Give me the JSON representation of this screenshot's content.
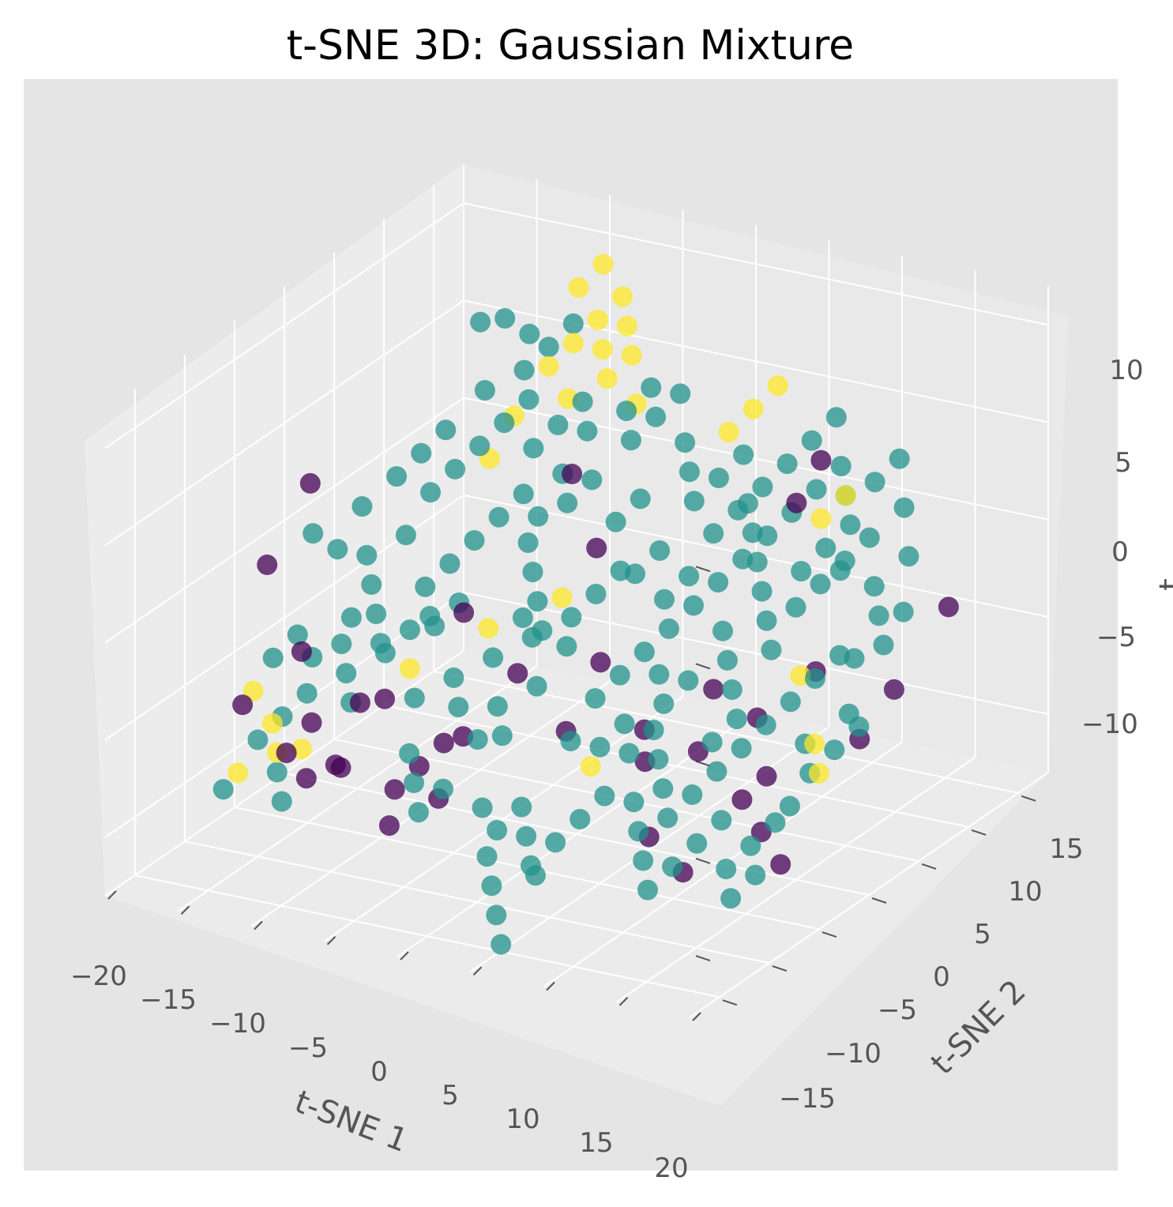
{
  "chart_data": {
    "type": "scatter",
    "projection": "3d",
    "title": "t-SNE 3D: Gaussian Mixture",
    "xlabel": "t-SNE 1",
    "ylabel": "t-SNE 2",
    "zlabel": "t",
    "xticks": [
      "−20",
      "−15",
      "−10",
      "−5",
      "0",
      "5",
      "10",
      "15",
      "20"
    ],
    "yticks": [
      "−15",
      "−10",
      "−5",
      "0",
      "5",
      "10",
      "15"
    ],
    "zticks": [
      "−10",
      "−5",
      "0",
      "5",
      "10"
    ],
    "xlim": [
      -20,
      20
    ],
    "ylim": [
      -18,
      18
    ],
    "zlim": [
      -13,
      12
    ],
    "grid": true,
    "legend": "none",
    "colormap": "viridis",
    "style": "ggplot",
    "colors": {
      "figure_background": "#ffffff",
      "axes_background": "#e5e5e5",
      "pane": "#ebebeb",
      "grid": "#ffffff",
      "class_0": "#440154",
      "class_1": "#21918c",
      "class_2": "#fde725"
    },
    "series": [
      {
        "class": 0,
        "color": "#440154",
        "points": [
          [
            -15.5,
            -4,
            4
          ],
          [
            -13,
            -12,
            3
          ],
          [
            -12,
            -10,
            -2
          ],
          [
            -14,
            -13,
            -4
          ],
          [
            -10,
            -9,
            -8
          ],
          [
            -11,
            -11,
            -8
          ],
          [
            -7,
            -8,
            -9
          ],
          [
            -6,
            -7,
            -8
          ],
          [
            -5,
            -6,
            -7
          ],
          [
            -4,
            -8,
            -9
          ],
          [
            -6,
            -10,
            -10
          ],
          [
            -3,
            -7,
            -6
          ],
          [
            -9,
            -11,
            -7
          ],
          [
            -1,
            1,
            5
          ],
          [
            0,
            2,
            1
          ],
          [
            -2,
            -3,
            -4
          ],
          [
            3,
            -2,
            -3
          ],
          [
            2,
            -4,
            -6
          ],
          [
            6,
            -2,
            -6
          ],
          [
            7,
            -3,
            -11
          ],
          [
            14,
            4,
            7
          ],
          [
            13,
            3,
            5
          ],
          [
            15,
            2,
            -3
          ],
          [
            12,
            -1,
            -9
          ],
          [
            13,
            0,
            -8
          ],
          [
            14,
            -2,
            -10
          ],
          [
            16,
            -3,
            -11
          ],
          [
            18,
            2,
            -6
          ],
          [
            19,
            4,
            -4
          ],
          [
            20,
            8,
            -1
          ],
          [
            -8,
            -10,
            -4
          ],
          [
            -5,
            -4,
            -1
          ],
          [
            4,
            1,
            -9
          ],
          [
            8,
            2,
            -5
          ],
          [
            9,
            -1,
            -7
          ],
          [
            10,
            -4,
            -12
          ],
          [
            11,
            2,
            -6
          ],
          [
            -12,
            -9,
            -6
          ],
          [
            -11,
            -13,
            -6
          ],
          [
            -7,
            -9,
            -4
          ]
        ]
      },
      {
        "class": 1,
        "color": "#21918c",
        "points": [
          [
            -10,
            5,
            10
          ],
          [
            -9,
            6,
            10
          ],
          [
            -8,
            7,
            9
          ],
          [
            -11,
            3,
            5
          ],
          [
            -12,
            2,
            4
          ],
          [
            -13,
            1,
            3
          ],
          [
            -15,
            -2,
            0
          ],
          [
            -16,
            -3,
            1
          ],
          [
            -14,
            -1,
            2
          ],
          [
            -13,
            -2,
            0
          ],
          [
            -12,
            -3,
            -1
          ],
          [
            -11,
            -4,
            -2
          ],
          [
            -10,
            -5,
            -3
          ],
          [
            -9,
            -2,
            -1
          ],
          [
            -8,
            -1,
            0
          ],
          [
            -7,
            0,
            1
          ],
          [
            -6,
            1,
            2
          ],
          [
            -5,
            2,
            3
          ],
          [
            -4,
            1,
            1
          ],
          [
            -3,
            0,
            0
          ],
          [
            -2,
            -1,
            -1
          ],
          [
            -1,
            -2,
            -2
          ],
          [
            0,
            -1,
            -3
          ],
          [
            -12,
            -6,
            -3
          ],
          [
            -13,
            -8,
            -5
          ],
          [
            -14,
            -9,
            -6
          ],
          [
            -15,
            -10,
            -7
          ],
          [
            -16,
            -12,
            -9
          ],
          [
            -11,
            -7,
            -4
          ],
          [
            -10,
            -8,
            -5
          ],
          [
            -9,
            -6,
            -3
          ],
          [
            -8,
            -5,
            -2
          ],
          [
            -7,
            -4,
            -2
          ],
          [
            -6,
            -3,
            -1
          ],
          [
            -5,
            -5,
            -4
          ],
          [
            -4,
            -6,
            -5
          ],
          [
            -3,
            -4,
            -3
          ],
          [
            -2,
            -5,
            -5
          ],
          [
            -1,
            -3,
            -2
          ],
          [
            0,
            -4,
            -4
          ],
          [
            1,
            -2,
            -1
          ],
          [
            2,
            -1,
            0
          ],
          [
            3,
            0,
            1
          ],
          [
            -8,
            2,
            5
          ],
          [
            -7,
            3,
            6
          ],
          [
            -6,
            4,
            7
          ],
          [
            -5,
            3,
            5
          ],
          [
            -4,
            4,
            6
          ],
          [
            -3,
            3,
            4
          ],
          [
            -2,
            2,
            3
          ],
          [
            -1,
            3,
            4
          ],
          [
            1,
            4,
            6
          ],
          [
            2,
            5,
            7
          ],
          [
            3,
            6,
            8
          ],
          [
            4,
            5,
            6
          ],
          [
            5,
            4,
            5
          ],
          [
            6,
            3,
            4
          ],
          [
            7,
            4,
            5
          ],
          [
            8,
            5,
            6
          ],
          [
            9,
            4,
            4
          ],
          [
            10,
            3,
            3
          ],
          [
            11,
            2,
            2
          ],
          [
            12,
            1,
            1
          ],
          [
            13,
            0,
            0
          ],
          [
            14,
            -1,
            -1
          ],
          [
            15,
            0,
            1
          ],
          [
            16,
            1,
            2
          ],
          [
            17,
            2,
            3
          ],
          [
            18,
            3,
            4
          ],
          [
            19,
            2,
            2
          ],
          [
            20,
            1,
            1
          ],
          [
            21,
            2,
            1
          ],
          [
            18,
            0,
            -1
          ],
          [
            17,
            -1,
            -2
          ],
          [
            16,
            -2,
            -3
          ],
          [
            15,
            -3,
            -4
          ],
          [
            14,
            -4,
            -5
          ],
          [
            13,
            -5,
            -6
          ],
          [
            12,
            -6,
            -7
          ],
          [
            11,
            -7,
            -8
          ],
          [
            10,
            -6,
            -7
          ],
          [
            9,
            -5,
            -6
          ],
          [
            8,
            -4,
            -5
          ],
          [
            7,
            -5,
            -6
          ],
          [
            6,
            -6,
            -8
          ],
          [
            5,
            -7,
            -9
          ],
          [
            4,
            -8,
            -10
          ],
          [
            3,
            -9,
            -11
          ],
          [
            2,
            -8,
            -10
          ],
          [
            1,
            -7,
            -9
          ],
          [
            0,
            -8,
            -10
          ],
          [
            3,
            -5,
            -6
          ],
          [
            4,
            -4,
            -4
          ],
          [
            5,
            -3,
            -3
          ],
          [
            6,
            -2,
            -2
          ],
          [
            7,
            -1,
            -1
          ],
          [
            8,
            0,
            0
          ],
          [
            9,
            1,
            1
          ],
          [
            10,
            2,
            2
          ],
          [
            11,
            3,
            3
          ],
          [
            12,
            4,
            4
          ],
          [
            13,
            5,
            5
          ],
          [
            14,
            6,
            6
          ],
          [
            15,
            5,
            5
          ],
          [
            16,
            4,
            4
          ],
          [
            17,
            5,
            6
          ],
          [
            18,
            6,
            7
          ],
          [
            19,
            5,
            5
          ],
          [
            20,
            4,
            3
          ],
          [
            12,
            -2,
            -3
          ],
          [
            11,
            -1,
            -2
          ],
          [
            10,
            0,
            -1
          ],
          [
            9,
            -2,
            -3
          ],
          [
            8,
            -3,
            -4
          ],
          [
            7,
            -2,
            -3
          ],
          [
            6,
            -4,
            -5
          ],
          [
            5,
            -5,
            -6
          ],
          [
            14,
            2,
            2
          ],
          [
            15,
            3,
            3
          ],
          [
            16,
            3,
            2
          ],
          [
            13,
            -3,
            -4
          ],
          [
            12,
            -4,
            -5
          ],
          [
            17,
            -2,
            -5
          ],
          [
            18,
            -3,
            -6
          ],
          [
            19,
            -2,
            -5
          ],
          [
            20,
            -1,
            -4
          ],
          [
            16,
            -6,
            -9
          ],
          [
            15,
            -7,
            -10
          ],
          [
            17,
            -5,
            -8
          ],
          [
            -10,
            0,
            3
          ],
          [
            -9,
            1,
            4
          ],
          [
            -8,
            -3,
            -2
          ],
          [
            -7,
            -6,
            -5
          ],
          [
            -6,
            -8,
            -7
          ],
          [
            -5,
            -9,
            -8
          ],
          [
            -4,
            -10,
            -9
          ],
          [
            -3,
            -9,
            -8
          ],
          [
            -2,
            -7,
            -6
          ],
          [
            -1,
            -6,
            -6
          ],
          [
            -11,
            -1,
            1
          ],
          [
            -12,
            -5,
            -2
          ],
          [
            -14,
            -6,
            -4
          ],
          [
            2,
            1,
            3
          ],
          [
            3,
            2,
            4
          ],
          [
            4,
            0,
            1
          ],
          [
            5,
            1,
            2
          ],
          [
            6,
            0,
            0
          ],
          [
            7,
            1,
            1
          ],
          [
            8,
            2,
            3
          ],
          [
            9,
            3,
            4
          ],
          [
            10,
            4,
            5
          ],
          [
            11,
            5,
            6
          ],
          [
            12,
            6,
            7
          ],
          [
            13,
            7,
            8
          ],
          [
            -15,
            -6,
            -3
          ],
          [
            -16,
            -7,
            -4
          ],
          [
            -13,
            -11,
            -8
          ],
          [
            -12,
            -12,
            -9
          ],
          [
            1,
            -10,
            -12
          ],
          [
            2,
            -11,
            -13
          ],
          [
            3,
            -12,
            -14
          ],
          [
            4,
            -10,
            -11
          ],
          [
            0,
            -9,
            -11
          ],
          [
            -1,
            -8,
            -9
          ],
          [
            19,
            0,
            -1
          ],
          [
            20,
            -2,
            -3
          ],
          [
            21,
            0,
            0
          ],
          [
            18,
            -5,
            -7
          ],
          [
            17,
            -7,
            -10
          ],
          [
            16,
            -8,
            -11
          ],
          [
            14,
            -6,
            -8
          ],
          [
            13,
            -7,
            -9
          ],
          [
            12,
            -8,
            -10
          ],
          [
            11,
            -9,
            -11
          ],
          [
            10,
            -8,
            -10
          ],
          [
            9,
            -7,
            -9
          ],
          [
            8,
            -6,
            -8
          ],
          [
            -6,
            6,
            9
          ],
          [
            -5,
            7,
            10
          ],
          [
            -9,
            4,
            7
          ],
          [
            -3,
            5,
            7
          ],
          [
            -2,
            4,
            6
          ],
          [
            0,
            5,
            7
          ],
          [
            1,
            6,
            8
          ],
          [
            -7,
            5,
            8
          ],
          [
            -4,
            2,
            2
          ],
          [
            -3,
            -1,
            -2
          ]
        ]
      },
      {
        "class": 2,
        "color": "#fde725",
        "points": [
          [
            -3,
            9,
            11
          ],
          [
            -2,
            8,
            10
          ],
          [
            -4,
            8,
            10
          ],
          [
            -5,
            7,
            9
          ],
          [
            -6,
            6,
            8
          ],
          [
            -3,
            7,
            9
          ],
          [
            -2,
            6,
            8
          ],
          [
            -1,
            7,
            9
          ],
          [
            -4,
            5,
            7
          ],
          [
            0,
            6,
            7
          ],
          [
            -7,
            4,
            6
          ],
          [
            -8,
            3,
            4
          ],
          [
            8,
            6,
            8
          ],
          [
            9,
            7,
            9
          ],
          [
            7,
            5,
            7
          ],
          [
            14,
            4,
            4
          ],
          [
            15,
            5,
            5
          ],
          [
            -16,
            -9,
            -5
          ],
          [
            -14,
            -10,
            -6
          ],
          [
            -13,
            -11,
            -7
          ],
          [
            -12,
            -10,
            -7
          ],
          [
            -15,
            -12,
            -8
          ],
          [
            -8,
            -5,
            -4
          ],
          [
            -4,
            -3,
            -2
          ],
          [
            -1,
            0,
            -1
          ],
          [
            3,
            -3,
            -8
          ],
          [
            19,
            -4,
            -4
          ],
          [
            20,
            -5,
            -5
          ],
          [
            16,
            -1,
            -2
          ],
          [
            -6,
            9,
            11
          ],
          [
            -5,
            10,
            12
          ]
        ]
      }
    ]
  }
}
